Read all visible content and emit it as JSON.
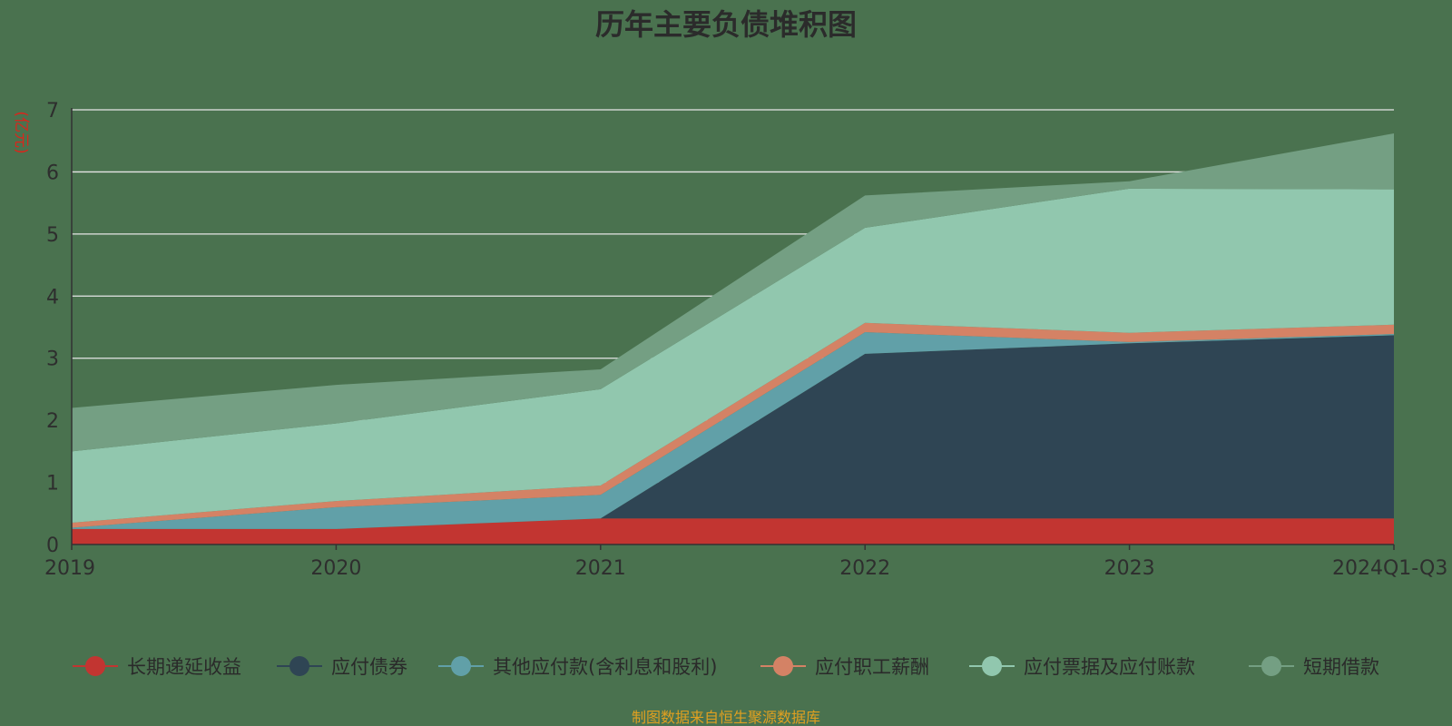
{
  "chart_data": {
    "type": "area",
    "stacked": true,
    "title": "历年主要负债堆积图",
    "ylabel": "(亿元)",
    "xlabel": "",
    "categories": [
      "2019",
      "2020",
      "2021",
      "2022",
      "2023",
      "2024Q1-Q3"
    ],
    "ylim": [
      0,
      7
    ],
    "yticks": [
      0,
      1,
      2,
      3,
      4,
      5,
      6,
      7
    ],
    "grid": true,
    "legend_position": "bottom",
    "series": [
      {
        "name": "长期递延收益",
        "color": "#c23531",
        "values": [
          0.25,
          0.25,
          0.42,
          0.42,
          0.42,
          0.42
        ]
      },
      {
        "name": "应付债券",
        "color": "#2f4554",
        "values": [
          0.0,
          0.0,
          0.0,
          2.65,
          2.82,
          2.95
        ]
      },
      {
        "name": "其他应付款(含利息和股利)",
        "color": "#61a0a8",
        "values": [
          0.02,
          0.35,
          0.38,
          0.35,
          0.02,
          0.02
        ]
      },
      {
        "name": "应付职工薪酬",
        "color": "#d48265",
        "values": [
          0.08,
          0.1,
          0.15,
          0.15,
          0.15,
          0.15
        ]
      },
      {
        "name": "应付票据及应付账款",
        "color": "#91c7ae",
        "values": [
          1.15,
          1.25,
          1.55,
          1.53,
          2.32,
          2.18
        ]
      },
      {
        "name": "短期借款",
        "color": "#749f83",
        "values": [
          0.7,
          0.62,
          0.32,
          0.52,
          0.12,
          0.9
        ]
      }
    ]
  },
  "source_note": "制图数据来自恒生聚源数据库"
}
